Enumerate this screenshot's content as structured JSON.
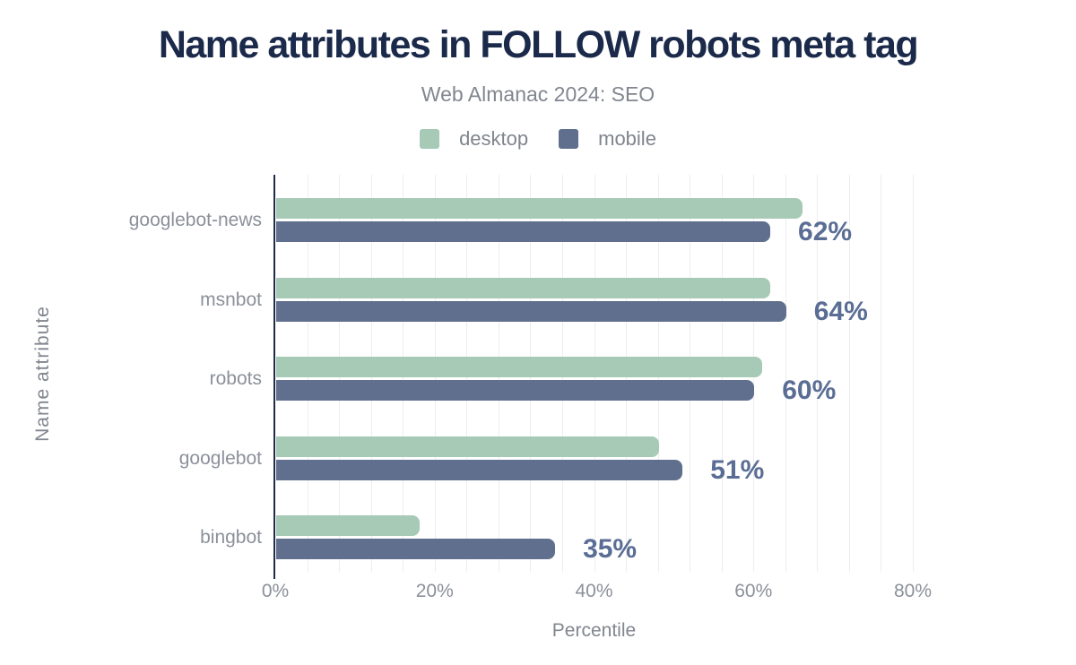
{
  "title": "Name attributes in FOLLOW robots meta tag",
  "subtitle": "Web Almanac 2024: SEO",
  "legend": {
    "items": [
      {
        "label": "desktop",
        "color": "#a7cab7"
      },
      {
        "label": "mobile",
        "color": "#5f6f8d"
      }
    ]
  },
  "chart_data": {
    "type": "bar",
    "orientation": "horizontal",
    "title": "Name attributes in FOLLOW robots meta tag",
    "subtitle": "Web Almanac 2024: SEO",
    "categories": [
      "googlebot-news",
      "msnbot",
      "robots",
      "googlebot",
      "bingbot"
    ],
    "series": [
      {
        "name": "desktop",
        "color": "#a7cab7",
        "values": [
          66,
          62,
          61,
          48,
          18
        ]
      },
      {
        "name": "mobile",
        "color": "#5f6f8d",
        "values": [
          62,
          64,
          60,
          51,
          35
        ]
      }
    ],
    "mobile_bar_labels": [
      "62%",
      "64%",
      "60%",
      "51%",
      "35%"
    ],
    "xlabel": "Percentile",
    "ylabel": "Name attribute",
    "xlim": [
      0,
      80
    ],
    "xticks": {
      "values": [
        0,
        20,
        40,
        60,
        80
      ],
      "labels": [
        "0%",
        "20%",
        "40%",
        "60%",
        "80%"
      ]
    },
    "grid": {
      "vertical": true,
      "minor_step_percent": 4,
      "color": "#ededee"
    },
    "legend_position": "top"
  },
  "colors": {
    "title": "#1b2a4a",
    "axis_line": "#1f2b49",
    "data_label": "#5a6d94",
    "tick_text": "#8b909a",
    "muted_text": "#81868f",
    "background": "#ffffff"
  }
}
